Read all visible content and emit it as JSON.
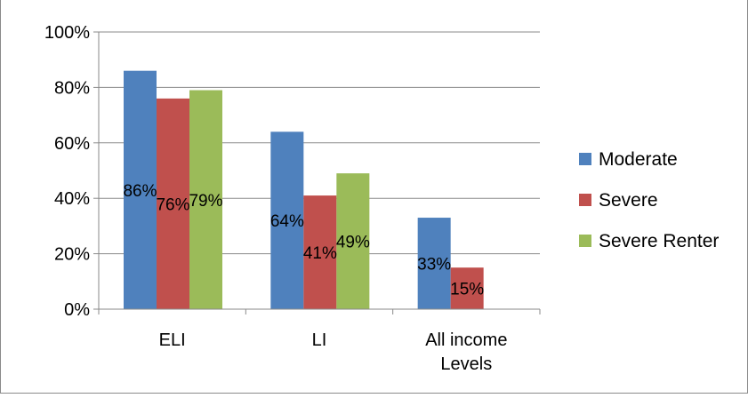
{
  "chart_data": {
    "type": "bar",
    "title": "",
    "xlabel": "",
    "ylabel": "",
    "categories": [
      "ELI",
      "LI",
      "All income Levels"
    ],
    "category_lines": [
      [
        "ELI"
      ],
      [
        "LI"
      ],
      [
        "All income",
        "Levels"
      ]
    ],
    "series": [
      {
        "name": "Moderate",
        "color": "#4f81bd",
        "values": [
          86,
          64,
          33
        ],
        "labels": [
          "86%",
          "64%",
          "33%"
        ]
      },
      {
        "name": "Severe",
        "color": "#c0504d",
        "values": [
          76,
          41,
          15
        ],
        "labels": [
          "76%",
          "41%",
          "15%"
        ]
      },
      {
        "name": "Severe Renter",
        "color": "#9bbb59",
        "values": [
          79,
          49,
          null
        ],
        "labels": [
          "79%",
          "49%",
          ""
        ]
      }
    ],
    "ylim": [
      0,
      100
    ],
    "yticks": [
      0,
      20,
      40,
      60,
      80,
      100
    ],
    "ytick_labels": [
      "0%",
      "20%",
      "40%",
      "60%",
      "80%",
      "100%"
    ],
    "grid": true,
    "legend_position": "right"
  }
}
